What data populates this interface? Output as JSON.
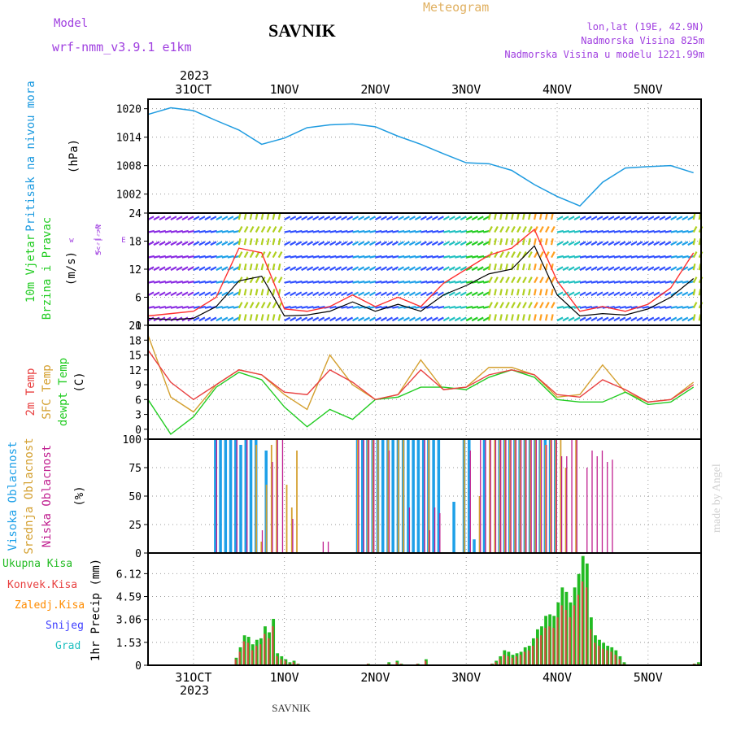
{
  "header": {
    "model_label": "Model",
    "model_name": "wrf-nmm_v3.9.1 e1km",
    "station": "SAVNIK",
    "product": "Meteogram",
    "lonlat": "lon,lat (19E, 42.9N)",
    "altitude": "Nadmorska Visina 825m",
    "model_altitude": "Nadmorska Visina u modelu 1221.99m",
    "year": "2023",
    "footer_station": "SAVNIK",
    "watermark": "made by Angel"
  },
  "colors": {
    "pressure": "#1e9be0",
    "wind_speed": "#000000",
    "gust": "#ff3030",
    "temp2m": "#e84040",
    "sfc_temp": "#d4a030",
    "dewpt": "#22cc22",
    "high_cloud": "#1ea0e8",
    "mid_cloud": "#d4a030",
    "low_cloud": "#c02090",
    "total_precip": "#22bb22",
    "conv_precip": "#e84040",
    "frozen_precip": "#ff8c00",
    "snow": "#4040ff",
    "grad": "#20c0c0"
  },
  "dates": [
    "31OCT",
    "1NOV",
    "2NOV",
    "3NOV",
    "4NOV",
    "5NOV"
  ],
  "chart_data": [
    {
      "type": "line",
      "name": "pressure",
      "ylabel": [
        "Pritisak na nivou mora",
        "(hPa)"
      ],
      "yticks": [
        1002,
        1008,
        1014,
        1020
      ],
      "ylim": [
        998,
        1022
      ],
      "x_hours": [
        0,
        6,
        12,
        18,
        24,
        30,
        36,
        42,
        48,
        54,
        60,
        66,
        72,
        78,
        84,
        90,
        96,
        102,
        108,
        114,
        120,
        126,
        132,
        138,
        144
      ],
      "series": [
        {
          "values": [
            1018.8,
            1020.2,
            1019.6,
            1017.5,
            1015.5,
            1012.5,
            1013.8,
            1016.0,
            1016.6,
            1016.8,
            1016.2,
            1014.2,
            1012.5,
            1010.5,
            1008.6,
            1008.4,
            1007.0,
            1004.0,
            1001.5,
            999.5,
            1004.5,
            1007.5,
            1007.8,
            1008.0,
            1006.5
          ]
        }
      ]
    },
    {
      "type": "line",
      "name": "wind",
      "ylabel": [
        "10m Vjetar",
        "Brzina i Pravac",
        "(m/s)"
      ],
      "compass": [
        "w",
        "<--|-->",
        "E",
        "S<-|->N"
      ],
      "yticks": [
        0,
        6,
        12,
        18,
        24
      ],
      "ylim": [
        0,
        24
      ],
      "x_hours": [
        0,
        6,
        12,
        18,
        24,
        30,
        36,
        42,
        48,
        54,
        60,
        66,
        72,
        78,
        84,
        90,
        96,
        102,
        108,
        114,
        120,
        126,
        132,
        138,
        144
      ],
      "series": [
        {
          "values": [
            1.5,
            1.2,
            1.5,
            4.0,
            9.5,
            10.5,
            2.0,
            2.2,
            3.0,
            5.0,
            3.0,
            4.5,
            3.0,
            6.5,
            8.5,
            11.0,
            12.0,
            17.0,
            6.5,
            2.0,
            2.5,
            2.2,
            3.5,
            6.0,
            10.0
          ]
        },
        {
          "values": [
            2.0,
            2.5,
            3.0,
            6.0,
            16.5,
            15.5,
            3.5,
            3.0,
            4.0,
            6.5,
            4.0,
            6.0,
            4.0,
            9.0,
            12.0,
            15.0,
            16.5,
            20.5,
            9.5,
            3.0,
            4.0,
            3.0,
            4.5,
            8.0,
            15.5
          ]
        }
      ]
    },
    {
      "type": "line",
      "name": "temperature",
      "ylabel": [
        "2m Temp",
        "SFC Temp",
        "dewpt Temp",
        "(C)"
      ],
      "yticks": [
        0,
        3,
        6,
        9,
        12,
        15,
        18,
        21
      ],
      "ylim": [
        -2,
        21
      ],
      "x_hours": [
        0,
        6,
        12,
        18,
        24,
        30,
        36,
        42,
        48,
        54,
        60,
        66,
        72,
        78,
        84,
        90,
        96,
        102,
        108,
        114,
        120,
        126,
        132,
        138,
        144
      ],
      "series": [
        {
          "values": [
            16,
            9.5,
            6.0,
            9.0,
            12.0,
            11.0,
            7.5,
            7.0,
            12.0,
            9.5,
            6.0,
            7.0,
            12.0,
            8.0,
            8.5,
            11.0,
            12.0,
            11.0,
            7.0,
            6.5,
            10.0,
            8.0,
            5.5,
            6.0,
            9.0
          ]
        },
        {
          "values": [
            19,
            6.5,
            3.5,
            9.0,
            12.0,
            11.0,
            7.0,
            4.0,
            15.0,
            9.0,
            6.0,
            7.0,
            14.0,
            8.0,
            8.5,
            12.5,
            12.5,
            11.0,
            6.5,
            7.0,
            13.0,
            7.5,
            5.5,
            6.0,
            9.5
          ]
        },
        {
          "values": [
            6,
            -1.0,
            2.5,
            8.5,
            11.5,
            10.0,
            4.5,
            0.5,
            4.0,
            2.0,
            6.0,
            6.5,
            8.5,
            8.5,
            8.0,
            10.5,
            12.0,
            10.5,
            6.0,
            5.5,
            5.5,
            7.5,
            5.0,
            5.5,
            8.5
          ]
        }
      ]
    },
    {
      "type": "bar",
      "name": "clouds",
      "ylabel": [
        "Visoka Oblacnost",
        "Srednja Oblacnost",
        "Niska Oblacnost",
        "(%)"
      ],
      "yticks": [
        0,
        25,
        50,
        75,
        100
      ],
      "ylim": [
        0,
        100
      ],
      "series": [
        {
          "values": [
            0,
            0,
            0,
            0,
            0,
            0,
            0,
            0,
            0,
            0,
            0,
            0,
            0,
            100,
            100,
            100,
            100,
            100,
            95,
            100,
            100,
            100,
            0,
            90,
            0,
            0,
            0,
            0,
            0,
            0,
            0,
            0,
            0,
            0,
            0,
            0,
            0,
            0,
            0,
            0,
            0,
            100,
            100,
            100,
            100,
            100,
            100,
            100,
            100,
            100,
            100,
            100,
            100,
            100,
            100,
            100,
            100,
            100,
            0,
            0,
            45,
            0,
            100,
            100,
            12,
            0,
            100,
            0,
            0,
            100,
            100,
            100,
            100,
            100,
            100,
            100,
            100,
            100,
            100,
            100,
            100,
            0,
            0,
            0,
            0,
            0,
            0,
            0,
            0,
            0,
            0,
            0,
            0,
            0,
            0,
            0,
            0,
            0,
            0,
            0,
            0,
            0,
            0,
            0,
            0,
            0,
            0,
            0,
            0
          ]
        },
        {
          "values": [
            0,
            0,
            0,
            0,
            0,
            0,
            0,
            0,
            0,
            0,
            0,
            0,
            0,
            0,
            0,
            0,
            0,
            0,
            0,
            0,
            0,
            95,
            10,
            60,
            95,
            100,
            0,
            60,
            40,
            90,
            0,
            0,
            0,
            0,
            0,
            0,
            0,
            0,
            0,
            0,
            0,
            100,
            0,
            100,
            100,
            100,
            0,
            100,
            0,
            100,
            100,
            0,
            0,
            0,
            0,
            100,
            0,
            0,
            0,
            0,
            0,
            0,
            100,
            0,
            0,
            50,
            0,
            100,
            100,
            100,
            100,
            100,
            100,
            100,
            100,
            100,
            100,
            100,
            95,
            100,
            100,
            100,
            75,
            0,
            100,
            0,
            0,
            0,
            0,
            0,
            0,
            0,
            0,
            0,
            0,
            0,
            0,
            0,
            0,
            0,
            0,
            0,
            0,
            0,
            0,
            0,
            0,
            0,
            0
          ]
        },
        {
          "values": [
            0,
            0,
            0,
            0,
            0,
            0,
            0,
            0,
            0,
            0,
            0,
            0,
            0,
            100,
            0,
            0,
            0,
            100,
            0,
            100,
            0,
            0,
            20,
            0,
            80,
            100,
            100,
            0,
            30,
            0,
            0,
            0,
            0,
            0,
            10,
            10,
            0,
            0,
            0,
            0,
            0,
            100,
            100,
            100,
            100,
            0,
            0,
            90,
            0,
            0,
            0,
            40,
            0,
            0,
            100,
            20,
            40,
            35,
            0,
            0,
            0,
            0,
            0,
            90,
            0,
            100,
            100,
            100,
            100,
            100,
            100,
            100,
            100,
            100,
            100,
            100,
            100,
            100,
            95,
            100,
            100,
            85,
            85,
            100,
            100,
            0,
            75,
            90,
            85,
            90,
            80,
            82,
            0,
            0,
            0,
            0,
            0,
            0,
            0,
            0,
            0,
            0,
            0,
            0,
            0,
            0,
            0,
            0,
            0
          ]
        }
      ]
    },
    {
      "type": "bar",
      "name": "precipitation",
      "ylabel": [
        "1hr Precip (mm)"
      ],
      "legend": [
        "Ukupna Kisa",
        "Konvek.Kisa",
        "Zaledj.Kisa",
        "Snijeg",
        "Grad"
      ],
      "yticks": [
        0,
        1.53,
        3.06,
        4.59,
        6.12
      ],
      "ylim": [
        0,
        7.5
      ],
      "series": [
        {
          "name": "Ukupna Kisa",
          "values": [
            0,
            0,
            0,
            0,
            0,
            0,
            0,
            0,
            0,
            0,
            0,
            0,
            0,
            0,
            0,
            0,
            0,
            0,
            0,
            0,
            0,
            0.5,
            1.2,
            2.0,
            1.9,
            1.4,
            1.7,
            1.8,
            2.6,
            2.2,
            3.1,
            0.8,
            0.6,
            0.4,
            0.2,
            0.3,
            0.1,
            0,
            0,
            0,
            0,
            0,
            0,
            0,
            0,
            0,
            0,
            0,
            0,
            0,
            0,
            0,
            0,
            0.1,
            0,
            0,
            0,
            0,
            0.2,
            0,
            0.3,
            0.1,
            0,
            0,
            0,
            0.1,
            0,
            0.4,
            0,
            0,
            0,
            0,
            0,
            0,
            0,
            0,
            0,
            0,
            0,
            0,
            0,
            0,
            0,
            0.1,
            0.3,
            0.6,
            1.0,
            0.9,
            0.7,
            0.8,
            0.9,
            1.2,
            1.3,
            1.8,
            2.4,
            2.6,
            3.3,
            3.4,
            3.3,
            4.2,
            5.2,
            4.9,
            4.2,
            5.2,
            6.1,
            7.3,
            6.8,
            3.2,
            2.0,
            1.7,
            1.5,
            1.3,
            1.2,
            1.0,
            0.6,
            0.2,
            0,
            0,
            0,
            0,
            0,
            0,
            0,
            0,
            0,
            0,
            0,
            0,
            0,
            0,
            0,
            0,
            0.1,
            0.2
          ]
        },
        {
          "name": "Konvek.Kisa",
          "values": [
            0,
            0,
            0,
            0,
            0,
            0,
            0,
            0,
            0,
            0,
            0,
            0,
            0,
            0,
            0,
            0,
            0,
            0,
            0,
            0,
            0,
            0.4,
            0.9,
            1.6,
            1.5,
            1.0,
            1.3,
            1.4,
            2.1,
            1.8,
            2.6,
            0.6,
            0.4,
            0.3,
            0.1,
            0.2,
            0.1,
            0,
            0,
            0,
            0,
            0,
            0,
            0,
            0,
            0,
            0,
            0,
            0,
            0,
            0,
            0,
            0,
            0.1,
            0,
            0,
            0,
            0,
            0.1,
            0,
            0.2,
            0.1,
            0,
            0,
            0,
            0.1,
            0,
            0.3,
            0,
            0,
            0,
            0,
            0,
            0,
            0,
            0,
            0,
            0,
            0,
            0,
            0,
            0,
            0,
            0.1,
            0.2,
            0.4,
            0.7,
            0.6,
            0.5,
            0.6,
            0.7,
            0.9,
            1.0,
            1.3,
            1.8,
            2.0,
            2.5,
            2.6,
            2.5,
            3.2,
            4.0,
            3.7,
            3.2,
            4.0,
            4.7,
            5.6,
            5.2,
            2.4,
            1.5,
            1.3,
            1.1,
            1.0,
            0.9,
            0.7,
            0.4,
            0.1,
            0,
            0,
            0,
            0,
            0,
            0,
            0,
            0,
            0,
            0,
            0,
            0,
            0,
            0,
            0,
            0,
            0.1,
            0.1
          ]
        }
      ]
    }
  ]
}
